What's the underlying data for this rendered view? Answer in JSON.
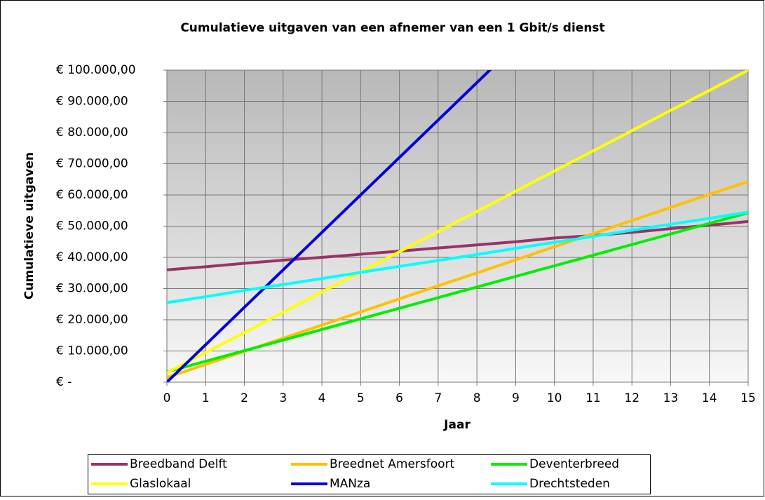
{
  "chart_data": {
    "type": "line",
    "title": "Cumulatieve uitgaven van een afnemer van een 1 Gbit/s dienst",
    "xlabel": "Jaar",
    "ylabel": "Cumulatieve uitgaven",
    "x": [
      0,
      1,
      2,
      3,
      4,
      5,
      6,
      7,
      8,
      9,
      10,
      11,
      12,
      13,
      14,
      15
    ],
    "series": [
      {
        "name": "Breedband Delft",
        "color": "#993366",
        "values": [
          36000,
          37000,
          38100,
          39100,
          40000,
          41000,
          42000,
          43000,
          44000,
          45000,
          46200,
          47000,
          48000,
          49200,
          50300,
          51500
        ]
      },
      {
        "name": "Breednet Amersfoort",
        "color": "#ffc000",
        "values": [
          1500,
          5700,
          9900,
          14100,
          18300,
          22500,
          26700,
          30900,
          35000,
          39200,
          43400,
          47600,
          51800,
          56000,
          60200,
          64300
        ]
      },
      {
        "name": "Deventerbreed",
        "color": "#00ee00",
        "values": [
          3300,
          6700,
          10100,
          13500,
          16900,
          20300,
          23700,
          27100,
          30500,
          33900,
          37300,
          40700,
          44100,
          47500,
          50900,
          54300
        ]
      },
      {
        "name": "Glaslokaal",
        "color": "#ffff00",
        "values": [
          3000,
          9500,
          15900,
          22400,
          28900,
          35300,
          41800,
          48300,
          54700,
          61200,
          67700,
          74100,
          80600,
          87100,
          93500,
          100000
        ]
      },
      {
        "name": "MANza",
        "color": "#0000dd",
        "values": [
          0,
          12000,
          24000,
          36000,
          48000,
          60000,
          72000,
          84000,
          96000,
          108000,
          null,
          null,
          null,
          null,
          null,
          null
        ]
      },
      {
        "name": "Drechtsteden",
        "color": "#00ffff",
        "values": [
          25500,
          27400,
          29400,
          31300,
          33200,
          35200,
          37100,
          39000,
          40900,
          42900,
          44800,
          46700,
          48700,
          50600,
          52500,
          54500
        ]
      }
    ],
    "xlim": [
      0,
      15
    ],
    "xticks": [
      0,
      1,
      2,
      3,
      4,
      5,
      6,
      7,
      8,
      9,
      10,
      11,
      12,
      13,
      14,
      15
    ],
    "ylim": [
      0,
      100000
    ],
    "yticks": [
      {
        "value": 0,
        "label": "€ -"
      },
      {
        "value": 10000,
        "label": "€ 10.000,00"
      },
      {
        "value": 20000,
        "label": "€ 20.000,00"
      },
      {
        "value": 30000,
        "label": "€ 30.000,00"
      },
      {
        "value": 40000,
        "label": "€ 40.000,00"
      },
      {
        "value": 50000,
        "label": "€ 50.000,00"
      },
      {
        "value": 60000,
        "label": "€ 60.000,00"
      },
      {
        "value": 70000,
        "label": "€ 70.000,00"
      },
      {
        "value": 80000,
        "label": "€ 80.000,00"
      },
      {
        "value": 90000,
        "label": "€ 90.000,00"
      },
      {
        "value": 100000,
        "label": "€ 100.000,00"
      }
    ],
    "grid": true
  }
}
